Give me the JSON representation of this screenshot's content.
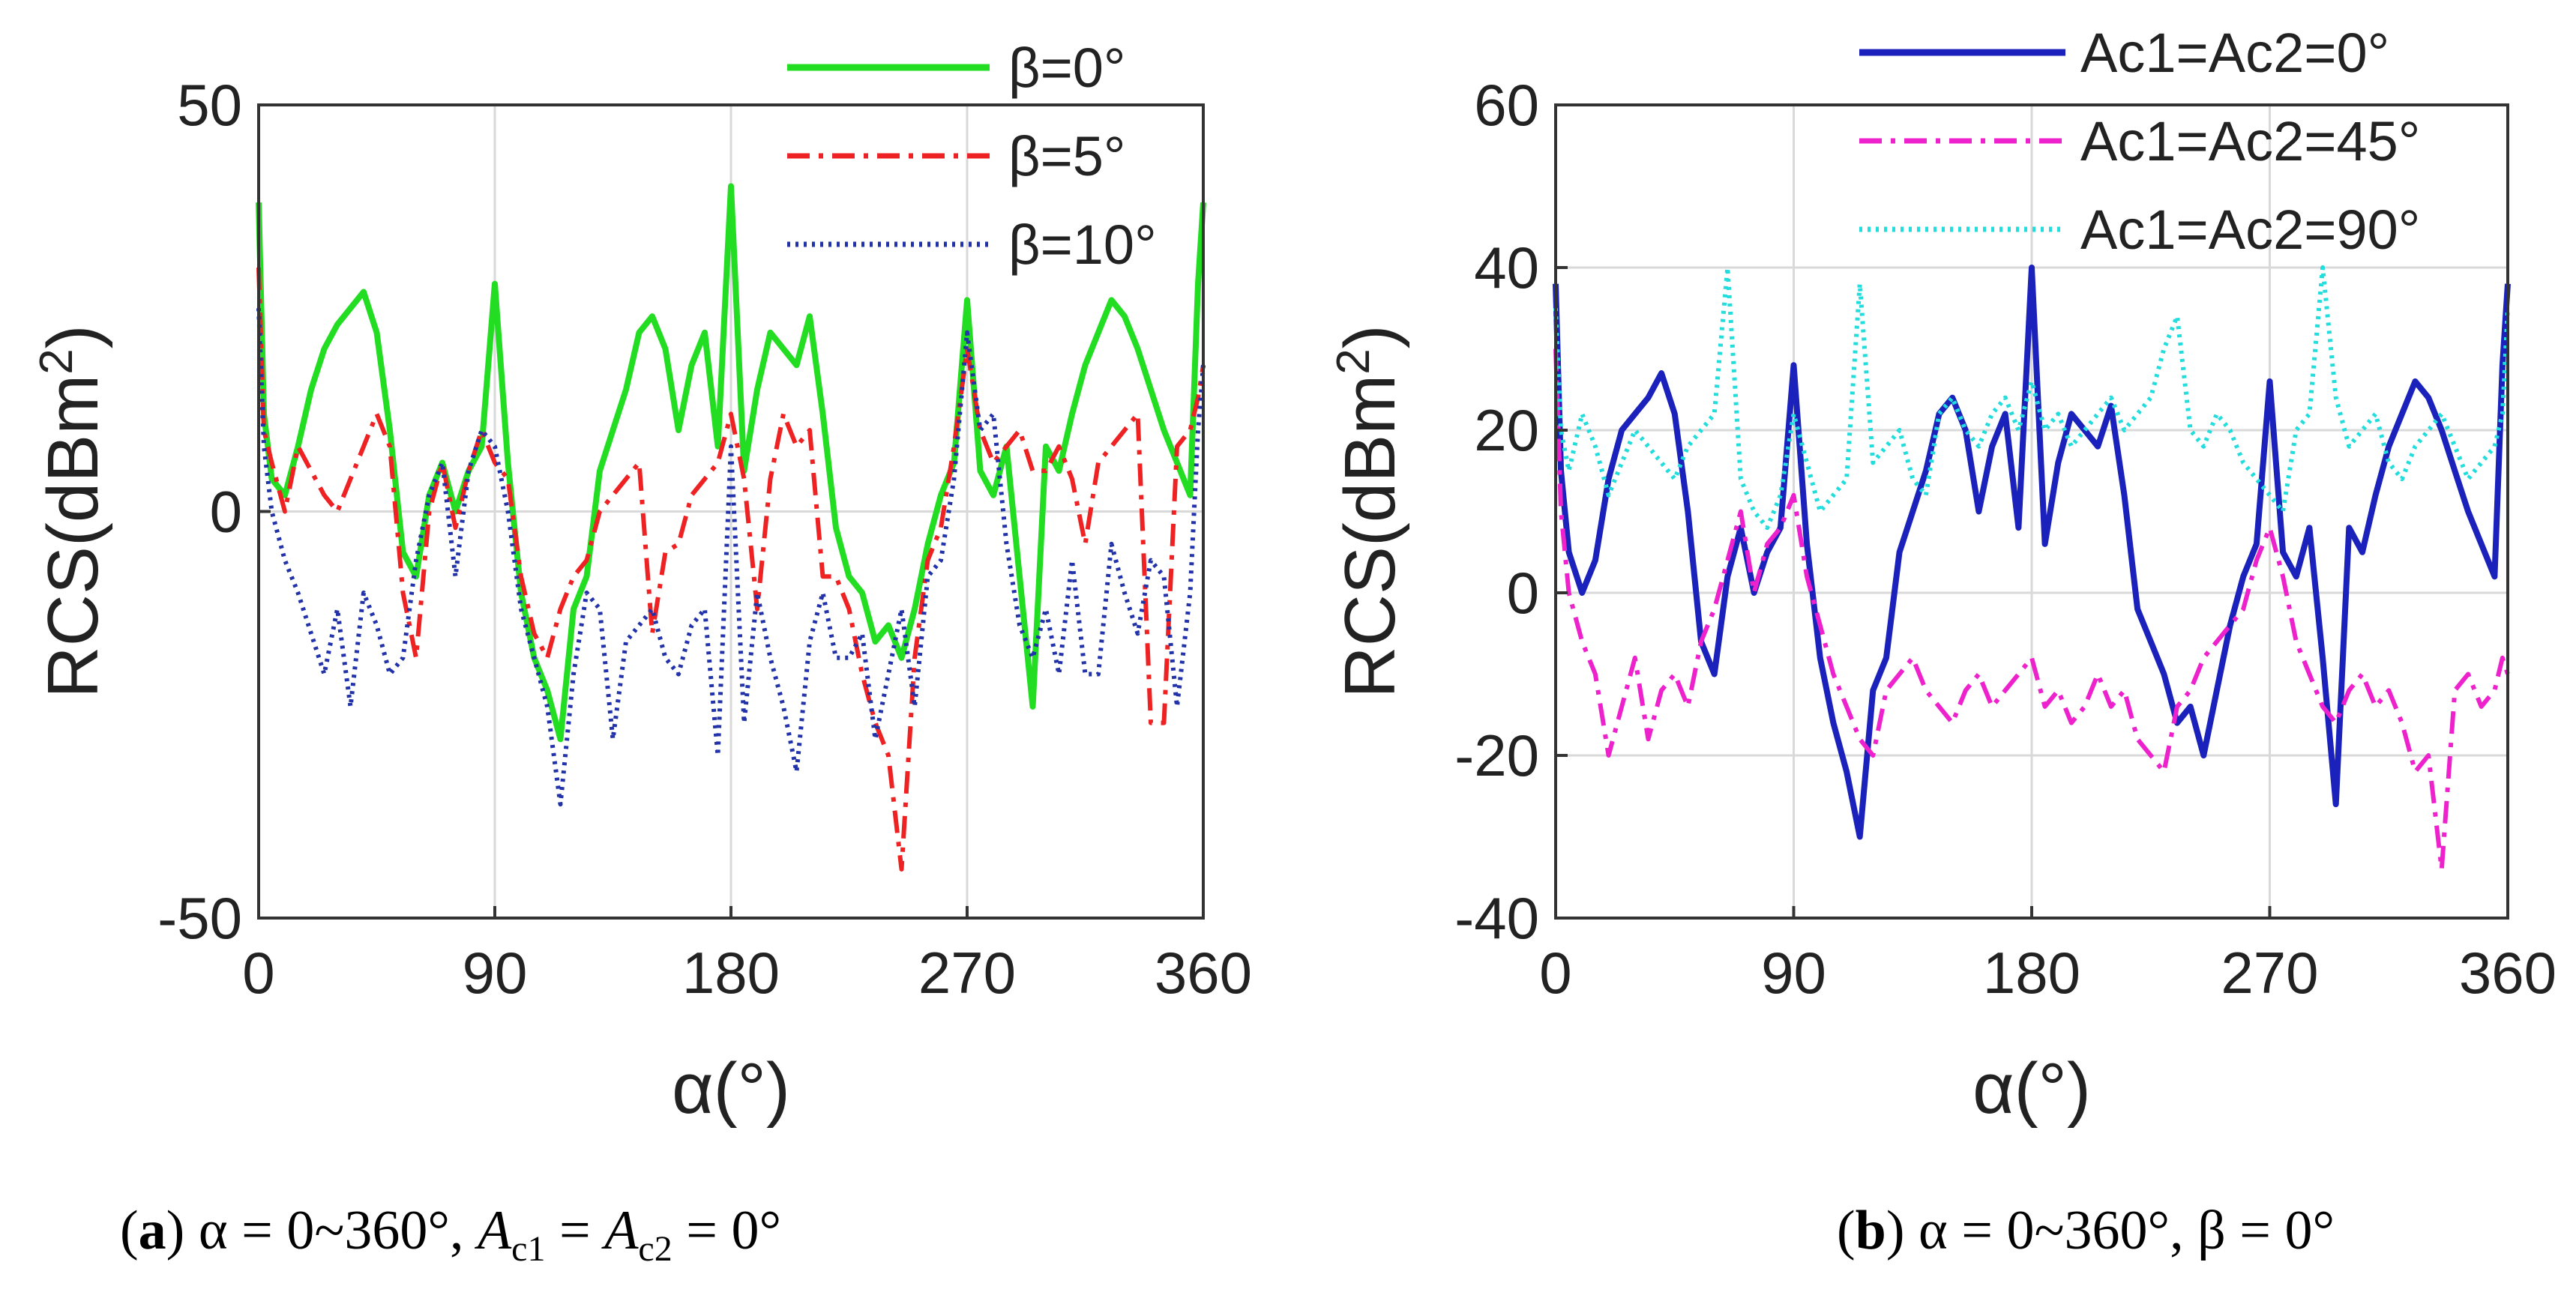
{
  "chart_data": [
    {
      "type": "line",
      "panel": "a",
      "title": "",
      "xlabel": "α(°)",
      "ylabel": "RCS(dBm",
      "ylabel_sup": "2",
      "ylabel_close": ")",
      "xlim": [
        0,
        360
      ],
      "ylim": [
        -50,
        50
      ],
      "xticks": [
        0,
        90,
        180,
        270,
        360
      ],
      "yticks": [
        -50,
        0,
        50
      ],
      "grid": true,
      "legend_position": "top-right",
      "x": [
        0,
        2,
        5,
        10,
        15,
        20,
        25,
        30,
        35,
        40,
        45,
        50,
        55,
        60,
        65,
        70,
        75,
        80,
        85,
        90,
        95,
        100,
        105,
        110,
        115,
        120,
        125,
        130,
        135,
        140,
        145,
        150,
        155,
        160,
        165,
        170,
        175,
        180,
        185,
        190,
        195,
        200,
        205,
        210,
        215,
        220,
        225,
        230,
        235,
        240,
        245,
        250,
        255,
        260,
        265,
        270,
        275,
        280,
        285,
        290,
        295,
        300,
        305,
        310,
        315,
        320,
        325,
        330,
        335,
        340,
        345,
        350,
        355,
        358,
        360
      ],
      "series": [
        {
          "name": "β=0°",
          "color": "#22dd22",
          "dash": "solid",
          "values": [
            38,
            12,
            4,
            2,
            8,
            15,
            20,
            23,
            25,
            27,
            22,
            10,
            -5,
            -8,
            2,
            6,
            0,
            5,
            8,
            28,
            6,
            -10,
            -18,
            -22,
            -28,
            -12,
            -8,
            5,
            10,
            15,
            22,
            24,
            20,
            10,
            18,
            22,
            8,
            40,
            5,
            15,
            22,
            20,
            18,
            24,
            12,
            -2,
            -8,
            -10,
            -16,
            -14,
            -18,
            -12,
            -4,
            2,
            6,
            26,
            5,
            2,
            8,
            -8,
            -24,
            8,
            5,
            12,
            18,
            22,
            26,
            24,
            20,
            15,
            10,
            6,
            2,
            28,
            38
          ]
        },
        {
          "name": "β=5°",
          "color": "#ee2222",
          "dash": "dashdot",
          "values": [
            30,
            10,
            6,
            0,
            8,
            5,
            2,
            0,
            4,
            8,
            12,
            8,
            -10,
            -18,
            0,
            6,
            -2,
            5,
            10,
            6,
            4,
            -8,
            -15,
            -18,
            -12,
            -8,
            -6,
            0,
            2,
            4,
            6,
            -15,
            -5,
            -4,
            2,
            4,
            6,
            12,
            4,
            -12,
            4,
            12,
            8,
            10,
            -8,
            -8,
            -12,
            -20,
            -26,
            -30,
            -44,
            -18,
            -6,
            -2,
            8,
            20,
            10,
            6,
            8,
            10,
            5,
            5,
            8,
            4,
            -4,
            6,
            8,
            10,
            12,
            -26,
            -26,
            8,
            10,
            14,
            18
          ]
        },
        {
          "name": "β=10°",
          "color": "#2233aa",
          "dash": "dotted",
          "values": [
            25,
            8,
            0,
            -6,
            -10,
            -15,
            -20,
            -12,
            -24,
            -10,
            -14,
            -20,
            -18,
            -6,
            2,
            6,
            -8,
            5,
            10,
            8,
            0,
            -12,
            -18,
            -24,
            -36,
            -20,
            -10,
            -12,
            -28,
            -16,
            -14,
            -12,
            -18,
            -20,
            -14,
            -12,
            -30,
            8,
            -26,
            -10,
            -18,
            -24,
            -32,
            -16,
            -10,
            -18,
            -18,
            -15,
            -28,
            -20,
            -12,
            -24,
            -8,
            -6,
            4,
            22,
            10,
            12,
            -4,
            -14,
            -18,
            -12,
            -20,
            -6,
            -20,
            -20,
            -4,
            -10,
            -15,
            -6,
            -8,
            -24,
            -10,
            10,
            18
          ]
        }
      ]
    },
    {
      "type": "line",
      "panel": "b",
      "title": "",
      "xlabel": "α(°)",
      "ylabel": "RCS(dBm",
      "ylabel_sup": "2",
      "ylabel_close": ")",
      "xlim": [
        0,
        360
      ],
      "ylim": [
        -40,
        60
      ],
      "xticks": [
        0,
        90,
        180,
        270,
        360
      ],
      "yticks": [
        -40,
        -20,
        0,
        20,
        40,
        60
      ],
      "grid": true,
      "legend_position": "top-right",
      "x": [
        0,
        2,
        5,
        10,
        15,
        20,
        25,
        30,
        35,
        40,
        45,
        50,
        55,
        60,
        65,
        70,
        75,
        80,
        85,
        90,
        95,
        100,
        105,
        110,
        115,
        120,
        125,
        130,
        135,
        140,
        145,
        150,
        155,
        160,
        165,
        170,
        175,
        180,
        185,
        190,
        195,
        200,
        205,
        210,
        215,
        220,
        225,
        230,
        235,
        240,
        245,
        250,
        255,
        260,
        265,
        270,
        275,
        280,
        285,
        290,
        295,
        300,
        305,
        310,
        315,
        320,
        325,
        330,
        335,
        340,
        345,
        350,
        355,
        358,
        360
      ],
      "series": [
        {
          "name": "Ac1=Ac2=0°",
          "color": "#1a22bb",
          "dash": "solid",
          "values": [
            38,
            15,
            5,
            0,
            4,
            14,
            20,
            22,
            24,
            27,
            22,
            10,
            -6,
            -10,
            2,
            8,
            0,
            5,
            8,
            28,
            6,
            -8,
            -16,
            -22,
            -30,
            -12,
            -8,
            5,
            10,
            15,
            22,
            24,
            20,
            10,
            18,
            22,
            8,
            40,
            6,
            16,
            22,
            20,
            18,
            23,
            12,
            -2,
            -6,
            -10,
            -16,
            -14,
            -20,
            -12,
            -4,
            2,
            6,
            26,
            5,
            2,
            8,
            -8,
            -26,
            8,
            5,
            12,
            18,
            22,
            26,
            24,
            20,
            15,
            10,
            6,
            2,
            28,
            38
          ]
        },
        {
          "name": "Ac1=Ac2=45°",
          "color": "#ee22cc",
          "dash": "dashdot",
          "values": [
            30,
            10,
            0,
            -6,
            -10,
            -20,
            -14,
            -8,
            -18,
            -12,
            -10,
            -14,
            -6,
            -2,
            4,
            10,
            0,
            6,
            8,
            12,
            2,
            -4,
            -10,
            -14,
            -18,
            -20,
            -12,
            -10,
            -8,
            -12,
            -14,
            -16,
            -12,
            -10,
            -14,
            -12,
            -10,
            -8,
            -14,
            -12,
            -16,
            -14,
            -10,
            -14,
            -12,
            -18,
            -20,
            -22,
            -14,
            -12,
            -8,
            -6,
            -4,
            -2,
            4,
            8,
            2,
            -6,
            -10,
            -14,
            -16,
            -12,
            -10,
            -14,
            -12,
            -16,
            -22,
            -20,
            -34,
            -12,
            -10,
            -14,
            -12,
            -8,
            -10
          ]
        },
        {
          "name": "Ac1=Ac2=90°",
          "color": "#22dddd",
          "dash": "dotted",
          "values": [
            35,
            20,
            15,
            22,
            18,
            12,
            16,
            20,
            18,
            16,
            14,
            18,
            20,
            22,
            40,
            14,
            10,
            8,
            12,
            22,
            16,
            10,
            12,
            14,
            38,
            16,
            18,
            20,
            14,
            12,
            22,
            24,
            20,
            18,
            22,
            24,
            20,
            26,
            20,
            22,
            18,
            20,
            22,
            24,
            20,
            22,
            24,
            30,
            34,
            20,
            18,
            22,
            20,
            16,
            14,
            12,
            10,
            20,
            22,
            40,
            24,
            18,
            20,
            22,
            16,
            14,
            18,
            20,
            22,
            18,
            14,
            16,
            18,
            22,
            35
          ]
        }
      ]
    }
  ],
  "captions": {
    "a": {
      "label": "a",
      "text1": " α = 0~360°, ",
      "A1": "A",
      "c1": "c1",
      "eq": " = ",
      "A2": "A",
      "c2": "c2",
      "end": " = 0°"
    },
    "b": {
      "label": "b",
      "text": " α = 0~360°, β = 0°"
    }
  }
}
